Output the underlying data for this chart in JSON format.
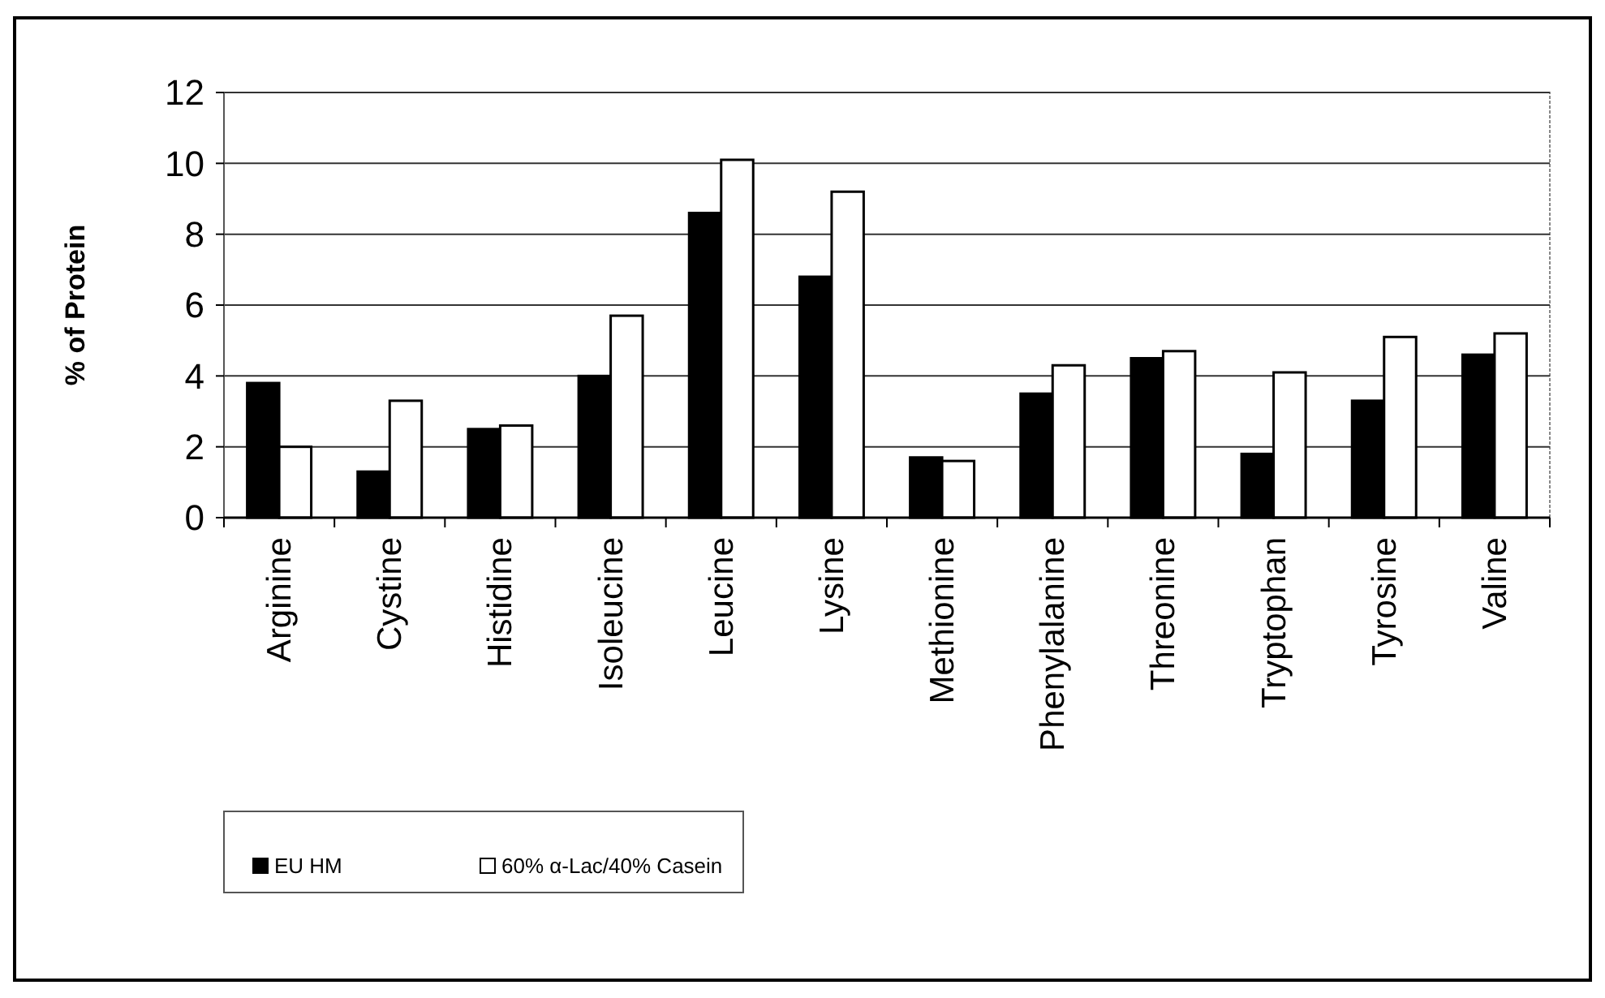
{
  "chart_data": {
    "type": "bar",
    "ylabel": "% of Protein",
    "categories": [
      "Arginine",
      "Cystine",
      "Histidine",
      "Isoleucine",
      "Leucine",
      "Lysine",
      "Methionine",
      "Phenylalanine",
      "Threonine",
      "Tryptophan",
      "Tyrosine",
      "Valine"
    ],
    "series": [
      {
        "name": "EU HM",
        "color": "#000000",
        "values": [
          3.8,
          1.3,
          2.5,
          4.0,
          8.6,
          6.8,
          1.7,
          3.5,
          4.5,
          1.8,
          3.3,
          4.6
        ]
      },
      {
        "name": "60% α-Lac/40% Casein",
        "color": "#ffffff",
        "values": [
          2.0,
          3.3,
          2.6,
          5.7,
          10.1,
          9.2,
          1.6,
          4.3,
          4.7,
          4.1,
          5.1,
          5.2
        ]
      }
    ],
    "ylim": [
      0,
      12
    ],
    "yticks": [
      0,
      2,
      4,
      6,
      8,
      10,
      12
    ],
    "grid": "y",
    "legend": "bottom left"
  }
}
